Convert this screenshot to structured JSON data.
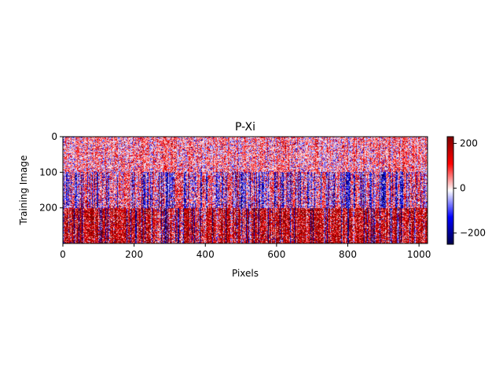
{
  "chart_data": {
    "type": "heatmap",
    "title": "P-Xi",
    "xlabel": "Pixels",
    "ylabel": "Training Image",
    "x_range": [
      0,
      1024
    ],
    "y_range": [
      0,
      300
    ],
    "x_ticks": [
      0,
      200,
      400,
      600,
      800,
      1000
    ],
    "y_ticks": [
      0,
      100,
      200
    ],
    "colormap": "seismic",
    "color_range": [
      -250,
      230
    ],
    "colorbar_ticks": [
      200,
      0,
      -200
    ],
    "row_bands": [
      {
        "rows": [
          0,
          100
        ],
        "mean_value": 20,
        "description": "light noisy mixed band, mostly pale red"
      },
      {
        "rows": [
          100,
          200
        ],
        "mean_value": -25,
        "description": "mixed band with many blue stripes"
      },
      {
        "rows": [
          200,
          300
        ],
        "mean_value": 60,
        "description": "strong red stripes with some blue columns"
      }
    ],
    "colors": {
      "neg": "#00004c",
      "mid": "#ffffff",
      "pos": "#800000"
    }
  }
}
